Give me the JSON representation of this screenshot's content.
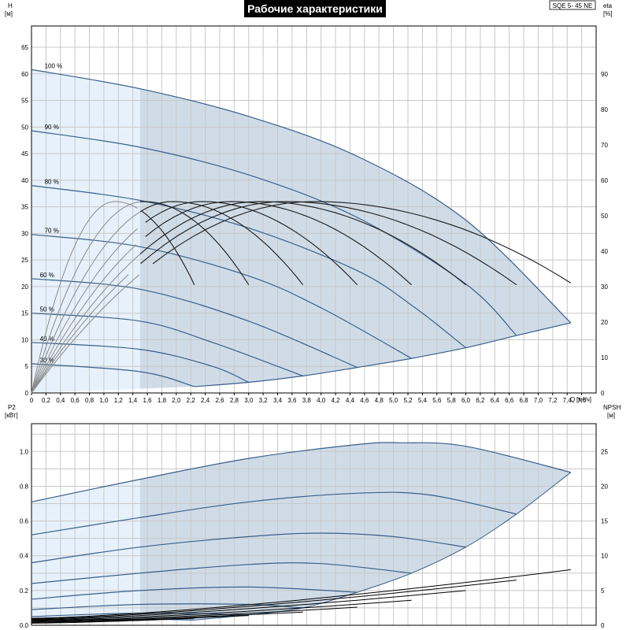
{
  "title": "Рабочие характеристики",
  "model": "SQE 5- 45 NE",
  "colors": {
    "region_light": "#e6f1fb",
    "region_dark": "#cfdce8",
    "curve": "#3a5f8a",
    "eta_dark": "#1a1a1a",
    "eta_light": "#8a8a8a",
    "npsh": "#000000"
  },
  "chart_data": [
    {
      "type": "line",
      "name": "head",
      "y_left_label": "H",
      "y_left_unit": "[м]",
      "y_right_label": "eta",
      "y_right_unit": "[%]",
      "x_label": "Q",
      "x_unit": "[м³/ч]",
      "xlim": [
        0,
        7.8
      ],
      "ylim": [
        0,
        69
      ],
      "ylim_right": [
        0,
        103.5
      ],
      "x_ticks": [
        "0",
        "0,2",
        "0,4",
        "0,6",
        "0,8",
        "1,0",
        "1,2",
        "1,4",
        "1,6",
        "1,8",
        "2,0",
        "2,2",
        "2,4",
        "2,6",
        "2,8",
        "3,0",
        "3,2",
        "3,4",
        "3,6",
        "3,8",
        "4,0",
        "4,2",
        "4,4",
        "4,6",
        "4,8",
        "5,0",
        "5,2",
        "5,4",
        "5,6",
        "5,8",
        "6,0",
        "6,2",
        "6,4",
        "6,6",
        "6,8",
        "7,0",
        "7,2",
        "7,4",
        "7,6"
      ],
      "y_ticks": [
        "0",
        "5",
        "10",
        "15",
        "20",
        "25",
        "30",
        "35",
        "40",
        "45",
        "50",
        "55",
        "60",
        "65"
      ],
      "y_right_ticks": [
        "0",
        "10",
        "20",
        "30",
        "40",
        "50",
        "60",
        "70",
        "80",
        "90"
      ],
      "grid": true,
      "min_q": 1.5,
      "curves": [
        {
          "name": "100 %",
          "points": [
            [
              0,
              60.8
            ],
            [
              1.5,
              57.2
            ],
            [
              3.0,
              52.0
            ],
            [
              4.5,
              44.5
            ],
            [
              6.0,
              32.5
            ],
            [
              7.45,
              13.2
            ]
          ]
        },
        {
          "name": "90 %",
          "points": [
            [
              0,
              49.3
            ],
            [
              1.5,
              46.2
            ],
            [
              3.0,
              41.0
            ],
            [
              4.5,
              33.0
            ],
            [
              6.0,
              20.5
            ],
            [
              6.7,
              10.8
            ]
          ]
        },
        {
          "name": "80 %",
          "points": [
            [
              0,
              39.0
            ],
            [
              1.5,
              36.2
            ],
            [
              3.0,
              31.0
            ],
            [
              4.5,
              23.0
            ],
            [
              5.3,
              16.0
            ],
            [
              6.0,
              8.5
            ]
          ]
        },
        {
          "name": "70 %",
          "points": [
            [
              0,
              29.8
            ],
            [
              1.5,
              27.5
            ],
            [
              3.0,
              22.0
            ],
            [
              4.0,
              16.0
            ],
            [
              5.25,
              6.5
            ]
          ]
        },
        {
          "name": "60 %",
          "points": [
            [
              0,
              21.5
            ],
            [
              1.5,
              19.5
            ],
            [
              3.0,
              13.5
            ],
            [
              4.5,
              4.8
            ]
          ]
        },
        {
          "name": "50 %",
          "points": [
            [
              0,
              15.0
            ],
            [
              1.5,
              13.5
            ],
            [
              2.5,
              9.5
            ],
            [
              3.75,
              3.2
            ]
          ]
        },
        {
          "name": "40 %",
          "points": [
            [
              0,
              9.5
            ],
            [
              1.5,
              8.2
            ],
            [
              2.5,
              5.0
            ],
            [
              3.0,
              2.0
            ]
          ]
        },
        {
          "name": "30 %",
          "points": [
            [
              0,
              5.5
            ],
            [
              1.5,
              4.0
            ],
            [
              2.25,
              1.2
            ]
          ]
        }
      ],
      "min_curve": [
        [
          2.25,
          1.2
        ],
        [
          3.0,
          2.0
        ],
        [
          3.75,
          3.2
        ],
        [
          4.5,
          4.8
        ],
        [
          5.25,
          6.5
        ],
        [
          6.0,
          8.5
        ],
        [
          6.7,
          10.8
        ],
        [
          7.45,
          13.2
        ]
      ],
      "eta_curves": [
        {
          "peak_q": 1.15,
          "end_q": 2.25,
          "end_eta": 30.5
        },
        {
          "peak_q": 1.55,
          "end_q": 3.0,
          "end_eta": 30.5
        },
        {
          "peak_q": 1.95,
          "end_q": 3.75,
          "end_eta": 30.5
        },
        {
          "peak_q": 2.35,
          "end_q": 4.5,
          "end_eta": 30.5
        },
        {
          "peak_q": 2.75,
          "end_q": 5.25,
          "end_eta": 30.5
        },
        {
          "peak_q": 3.15,
          "end_q": 6.0,
          "end_eta": 30.5
        },
        {
          "peak_q": 3.5,
          "end_q": 6.7,
          "end_eta": 30.5
        },
        {
          "peak_q": 3.9,
          "end_q": 7.45,
          "end_eta": 31.0
        }
      ],
      "eta_peak": 54
    },
    {
      "type": "line",
      "name": "power",
      "y_left_label": "P2",
      "y_left_unit": "[кВт]",
      "y_right_label": "NPSH",
      "y_right_unit": "[м]",
      "xlim": [
        0,
        7.8
      ],
      "ylim": [
        0,
        1.16
      ],
      "ylim_right": [
        0,
        29
      ],
      "y_ticks": [
        "0.0",
        "0.2",
        "0.4",
        "0.6",
        "0.8",
        "1.0"
      ],
      "y_right_ticks": [
        "0",
        "5",
        "10",
        "15",
        "20",
        "25"
      ],
      "grid": true,
      "curves": [
        {
          "name": "100 %",
          "points": [
            [
              0,
              0.71
            ],
            [
              1.5,
              0.84
            ],
            [
              3.0,
              0.96
            ],
            [
              4.5,
              1.04
            ],
            [
              5.1,
              1.05
            ],
            [
              6.0,
              1.03
            ],
            [
              7.45,
              0.88
            ]
          ]
        },
        {
          "name": "90 %",
          "points": [
            [
              0,
              0.52
            ],
            [
              1.5,
              0.62
            ],
            [
              3.0,
              0.71
            ],
            [
              4.5,
              0.76
            ],
            [
              5.5,
              0.75
            ],
            [
              6.7,
              0.64
            ]
          ]
        },
        {
          "name": "80 %",
          "points": [
            [
              0,
              0.36
            ],
            [
              1.5,
              0.45
            ],
            [
              3.0,
              0.51
            ],
            [
              4.0,
              0.53
            ],
            [
              5.0,
              0.51
            ],
            [
              6.0,
              0.45
            ]
          ]
        },
        {
          "name": "70 %",
          "points": [
            [
              0,
              0.24
            ],
            [
              1.5,
              0.3
            ],
            [
              3.0,
              0.35
            ],
            [
              4.0,
              0.355
            ],
            [
              5.25,
              0.3
            ]
          ]
        },
        {
          "name": "60 %",
          "points": [
            [
              0,
              0.15
            ],
            [
              1.5,
              0.2
            ],
            [
              3.0,
              0.22
            ],
            [
              4.5,
              0.19
            ]
          ]
        },
        {
          "name": "50 %",
          "points": [
            [
              0,
              0.09
            ],
            [
              1.5,
              0.12
            ],
            [
              3.0,
              0.12
            ],
            [
              3.75,
              0.1
            ]
          ]
        },
        {
          "name": "40 %",
          "points": [
            [
              0,
              0.05
            ],
            [
              1.5,
              0.07
            ],
            [
              3.0,
              0.06
            ]
          ]
        },
        {
          "name": "30 %",
          "points": [
            [
              0,
              0.03
            ],
            [
              1.5,
              0.035
            ],
            [
              2.25,
              0.03
            ]
          ]
        }
      ],
      "npsh_curves": [
        {
          "points": [
            [
              0,
              0.3
            ],
            [
              2.25,
              1.0
            ]
          ]
        },
        {
          "points": [
            [
              0,
              0.4
            ],
            [
              3.0,
              1.4
            ]
          ]
        },
        {
          "points": [
            [
              0,
              0.5
            ],
            [
              3.75,
              1.9
            ]
          ]
        },
        {
          "points": [
            [
              0,
              0.6
            ],
            [
              4.5,
              2.6
            ]
          ]
        },
        {
          "points": [
            [
              0,
              0.7
            ],
            [
              5.25,
              3.6
            ]
          ]
        },
        {
          "points": [
            [
              0,
              0.8
            ],
            [
              6.0,
              5.0
            ]
          ]
        },
        {
          "points": [
            [
              0,
              0.9
            ],
            [
              6.7,
              6.5
            ]
          ]
        },
        {
          "points": [
            [
              0,
              1.0
            ],
            [
              7.45,
              8.0
            ]
          ]
        }
      ]
    }
  ]
}
